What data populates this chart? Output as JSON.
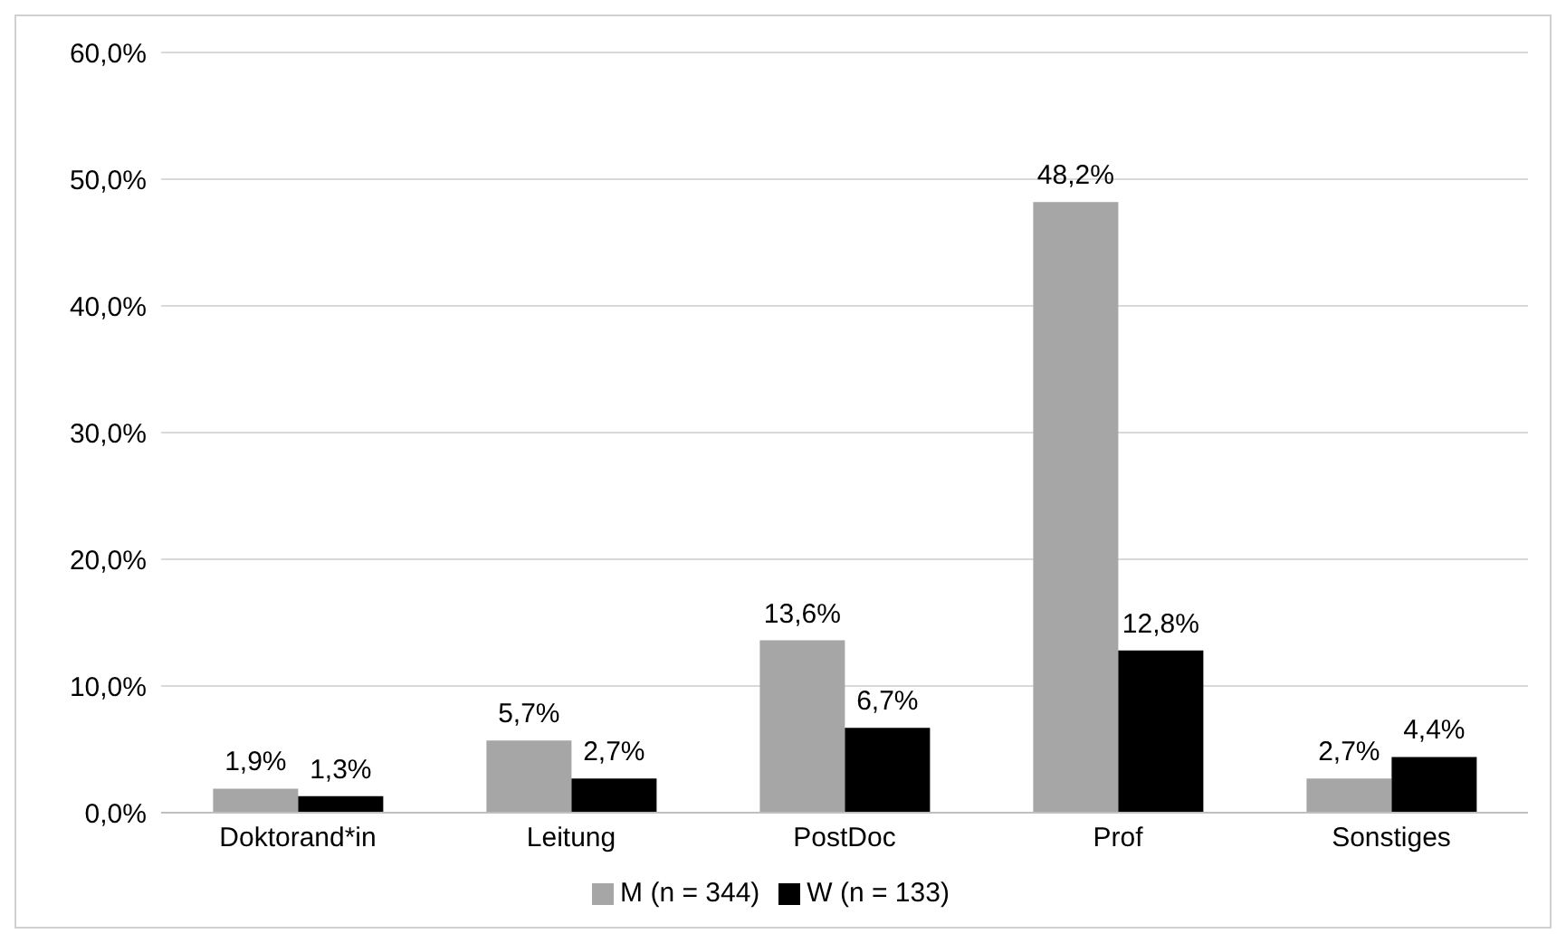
{
  "chart_data": {
    "type": "bar",
    "categories": [
      "Doktorand*in",
      "Leitung",
      "PostDoc",
      "Prof",
      "Sonstiges"
    ],
    "series": [
      {
        "name": "M (n = 344)",
        "color": "#a6a6a6",
        "values": [
          1.9,
          5.7,
          13.6,
          48.2,
          2.7
        ],
        "value_labels": [
          "1,9%",
          "5,7%",
          "13,6%",
          "48,2%",
          "2,7%"
        ]
      },
      {
        "name": "W (n = 133)",
        "color": "#000000",
        "values": [
          1.3,
          2.7,
          6.7,
          12.8,
          4.4
        ],
        "value_labels": [
          "1,3%",
          "2,7%",
          "6,7%",
          "12,8%",
          "4,4%"
        ]
      }
    ],
    "ylim": [
      0,
      60
    ],
    "yticks": [
      {
        "value": 0,
        "label": "0,0%"
      },
      {
        "value": 10,
        "label": "10,0%"
      },
      {
        "value": 20,
        "label": "20,0%"
      },
      {
        "value": 30,
        "label": "30,0%"
      },
      {
        "value": 40,
        "label": "40,0%"
      },
      {
        "value": 50,
        "label": "50,0%"
      },
      {
        "value": 60,
        "label": "60,0%"
      }
    ],
    "grid": "y",
    "legend": "bottom"
  }
}
